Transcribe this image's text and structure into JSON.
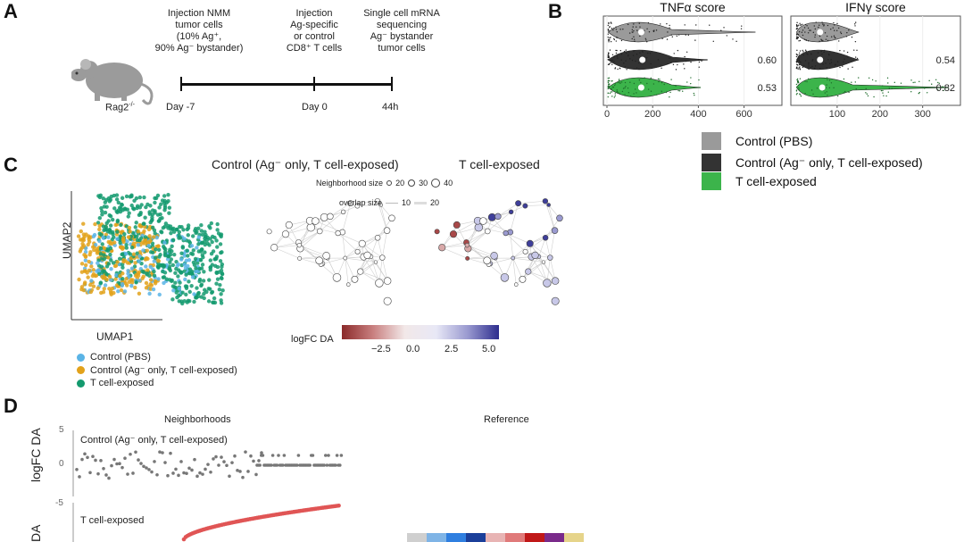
{
  "panels": {
    "a": "A",
    "b": "B",
    "c": "C",
    "d": "D"
  },
  "panelA": {
    "mouse_label": "Rag2",
    "mouse_label_sup": "-/-",
    "steps": [
      {
        "text": "Injection NMM\ntumor cells\n(10% Ag⁺,\n90% Ag⁻ bystander)",
        "day": "Day -7"
      },
      {
        "text": "Injection\nAg-specific\nor control\nCD8⁺ T cells",
        "day": "Day 0"
      },
      {
        "text": "Single cell mRNA\nsequencing\nAg⁻ bystander\ntumor cells",
        "day": "44h"
      }
    ]
  },
  "panelB": {
    "legend": [
      {
        "label": "Control (PBS)",
        "color": "#9a9a9a"
      },
      {
        "label": "Control (Ag⁻ only, T cell-exposed)",
        "color": "#333333"
      },
      {
        "label": "T cell-exposed",
        "color": "#3cb44b"
      }
    ]
  },
  "panelC": {
    "title_left": "Control (Ag⁻ only, T cell-exposed)",
    "title_right": "T cell-exposed",
    "umap_x": "UMAP1",
    "umap_y": "UMAP2",
    "nh_size_label": "Neighborhood size",
    "nh_sizes": [
      "20",
      "30",
      "40"
    ],
    "overlap_label": "overlap size",
    "overlap_sizes": [
      "10",
      "20"
    ],
    "colorbar_label": "logFC DA",
    "colorbar_ticks": [
      "−2.5",
      "0.0",
      "2.5",
      "5.0"
    ],
    "legend": [
      {
        "label": "Control (PBS)",
        "color": "#5ab4e6"
      },
      {
        "label": "Control (Ag⁻ only, T cell-exposed)",
        "color": "#e2a21b"
      },
      {
        "label": "T cell-exposed",
        "color": "#139a6e"
      }
    ]
  },
  "panelD": {
    "neighborhoods_title": "Neighborhoods",
    "reference_title": "Reference",
    "ylabel": "logFC DA",
    "row1_label": "Control (Ag⁻ only, T cell-exposed)",
    "row2_label": "T cell-exposed",
    "yticks": [
      "5",
      "0",
      "-5"
    ],
    "reference_colors": [
      "#cfcfcf",
      "#7fb4e6",
      "#2f7fe0",
      "#1b3f9a",
      "#e8b4b4",
      "#e07a7a",
      "#c01818",
      "#7a2a8a",
      "#e6d48a"
    ]
  },
  "chart_data": [
    {
      "type": "violin",
      "title": "TNFα score",
      "groups": [
        "Control (PBS)",
        "Control (Ag⁻ only, T cell-exposed)",
        "T cell-exposed"
      ],
      "medians": [
        150,
        155,
        150
      ],
      "annotations": [
        "",
        "0.60",
        "0.53"
      ],
      "xlim": [
        0,
        750
      ],
      "xticks": [
        "0",
        "200",
        "400",
        "600"
      ]
    },
    {
      "type": "violin",
      "title": "IFNγ score",
      "groups": [
        "Control (PBS)",
        "Control (Ag⁻ only, T cell-exposed)",
        "T cell-exposed"
      ],
      "medians": [
        60,
        60,
        65
      ],
      "annotations": [
        "",
        "0.54",
        "0.82"
      ],
      "xlim": [
        0,
        380
      ],
      "xticks": [
        "100",
        "200",
        "300"
      ]
    }
  ]
}
